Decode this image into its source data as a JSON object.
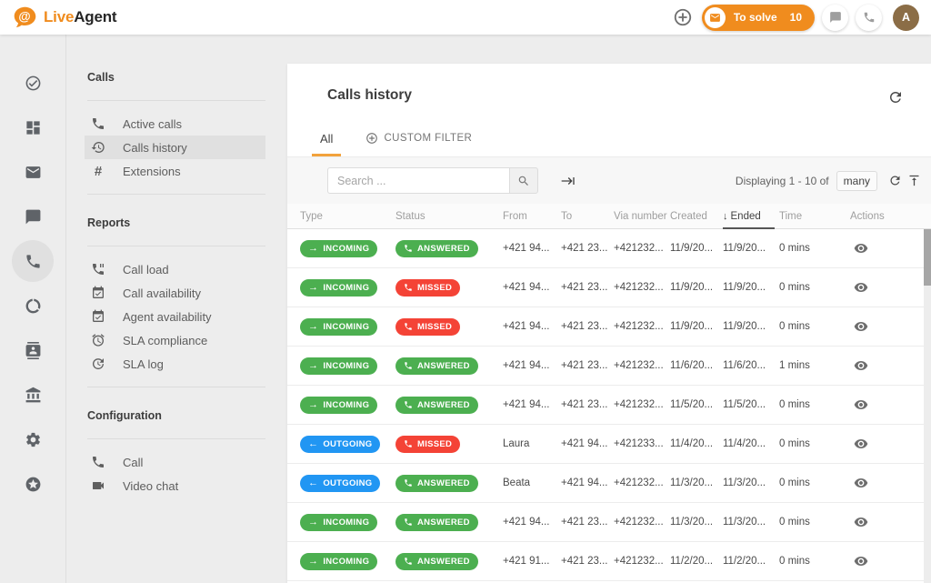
{
  "topbar": {
    "logo": {
      "live": "Live",
      "agent": "Agent"
    },
    "add_button_icon": "add-circle-icon",
    "to_solve": {
      "label": "To solve",
      "count": "10",
      "icon": "mail-icon"
    },
    "chat_button_icon": "chat-icon",
    "phone_button_icon": "phone-icon",
    "avatar_initial": "A"
  },
  "colors": {
    "brand_orange": "#f08c1e",
    "tab_underline": "#f2a23c",
    "badge_green": "#4caf50",
    "badge_red": "#f44336",
    "badge_blue": "#2196f3",
    "avatar_brown": "#8b6d46",
    "selected_bg": "#e0e0e0"
  },
  "rail": {
    "items": [
      {
        "icon": "check-circle-icon"
      },
      {
        "icon": "dashboard-icon"
      },
      {
        "icon": "mail-icon"
      },
      {
        "icon": "chat-icon"
      },
      {
        "icon": "phone-icon",
        "active": true
      },
      {
        "icon": "data-usage-icon"
      },
      {
        "icon": "contacts-icon"
      },
      {
        "icon": "bank-icon"
      },
      {
        "icon": "gear-icon"
      },
      {
        "icon": "stars-icon"
      }
    ]
  },
  "sidebar": {
    "sections": [
      {
        "title": "Calls",
        "items": [
          {
            "label": "Active calls",
            "icon": "phone-icon"
          },
          {
            "label": "Calls history",
            "icon": "history-icon",
            "active": true
          },
          {
            "label": "Extensions",
            "icon": "hash-icon"
          }
        ]
      },
      {
        "title": "Reports",
        "items": [
          {
            "label": "Call load",
            "icon": "phone-paused-icon"
          },
          {
            "label": "Call availability",
            "icon": "event-available-icon"
          },
          {
            "label": "Agent availability",
            "icon": "event-available-icon"
          },
          {
            "label": "SLA compliance",
            "icon": "alarm-icon"
          },
          {
            "label": "SLA log",
            "icon": "update-icon"
          }
        ]
      },
      {
        "title": "Configuration",
        "items": [
          {
            "label": "Call",
            "icon": "phone-icon"
          },
          {
            "label": "Video chat",
            "icon": "videocam-icon"
          }
        ]
      }
    ]
  },
  "main": {
    "title": "Calls history",
    "refresh_icon": "refresh-icon",
    "tabs": [
      {
        "label": "All",
        "active": true
      },
      {
        "label": "CUSTOM FILTER",
        "icon": "add-circle-icon"
      }
    ],
    "toolbar": {
      "search_placeholder": "Search ...",
      "search_icon": "search-icon",
      "skip_icon": "keyboard-tab-icon",
      "displaying_text": "Displaying 1 - 10 of",
      "count_badge": "many",
      "refresh_icon": "refresh-icon",
      "collapse_icon": "align-top-icon"
    },
    "table": {
      "columns": [
        "Type",
        "Status",
        "From",
        "To",
        "Via number",
        "Created",
        "Ended",
        "Time",
        "Actions"
      ],
      "sorted_column": "Ended",
      "sort_indicator": "↓",
      "action_icon": "eye-icon",
      "rows": [
        {
          "type": "INCOMING",
          "status": "ANSWERED",
          "from": "+421 94...",
          "to": "+421 23...",
          "via": "+421232...",
          "created": "11/9/20...",
          "ended": "11/9/20...",
          "time": "0 mins"
        },
        {
          "type": "INCOMING",
          "status": "MISSED",
          "from": "+421 94...",
          "to": "+421 23...",
          "via": "+421232...",
          "created": "11/9/20...",
          "ended": "11/9/20...",
          "time": "0 mins"
        },
        {
          "type": "INCOMING",
          "status": "MISSED",
          "from": "+421 94...",
          "to": "+421 23...",
          "via": "+421232...",
          "created": "11/9/20...",
          "ended": "11/9/20...",
          "time": "0 mins"
        },
        {
          "type": "INCOMING",
          "status": "ANSWERED",
          "from": "+421 94...",
          "to": "+421 23...",
          "via": "+421232...",
          "created": "11/6/20...",
          "ended": "11/6/20...",
          "time": "1 mins"
        },
        {
          "type": "INCOMING",
          "status": "ANSWERED",
          "from": "+421 94...",
          "to": "+421 23...",
          "via": "+421232...",
          "created": "11/5/20...",
          "ended": "11/5/20...",
          "time": "0 mins"
        },
        {
          "type": "OUTGOING",
          "status": "MISSED",
          "from": "Laura",
          "to": "+421 94...",
          "via": "+421233...",
          "created": "11/4/20...",
          "ended": "11/4/20...",
          "time": "0 mins"
        },
        {
          "type": "OUTGOING",
          "status": "ANSWERED",
          "from": "Beata",
          "to": "+421 94...",
          "via": "+421232...",
          "created": "11/3/20...",
          "ended": "11/3/20...",
          "time": "0 mins"
        },
        {
          "type": "INCOMING",
          "status": "ANSWERED",
          "from": "+421 94...",
          "to": "+421 23...",
          "via": "+421232...",
          "created": "11/3/20...",
          "ended": "11/3/20...",
          "time": "0 mins"
        },
        {
          "type": "INCOMING",
          "status": "ANSWERED",
          "from": "+421 91...",
          "to": "+421 23...",
          "via": "+421232...",
          "created": "11/2/20...",
          "ended": "11/2/20...",
          "time": "0 mins"
        }
      ]
    }
  }
}
